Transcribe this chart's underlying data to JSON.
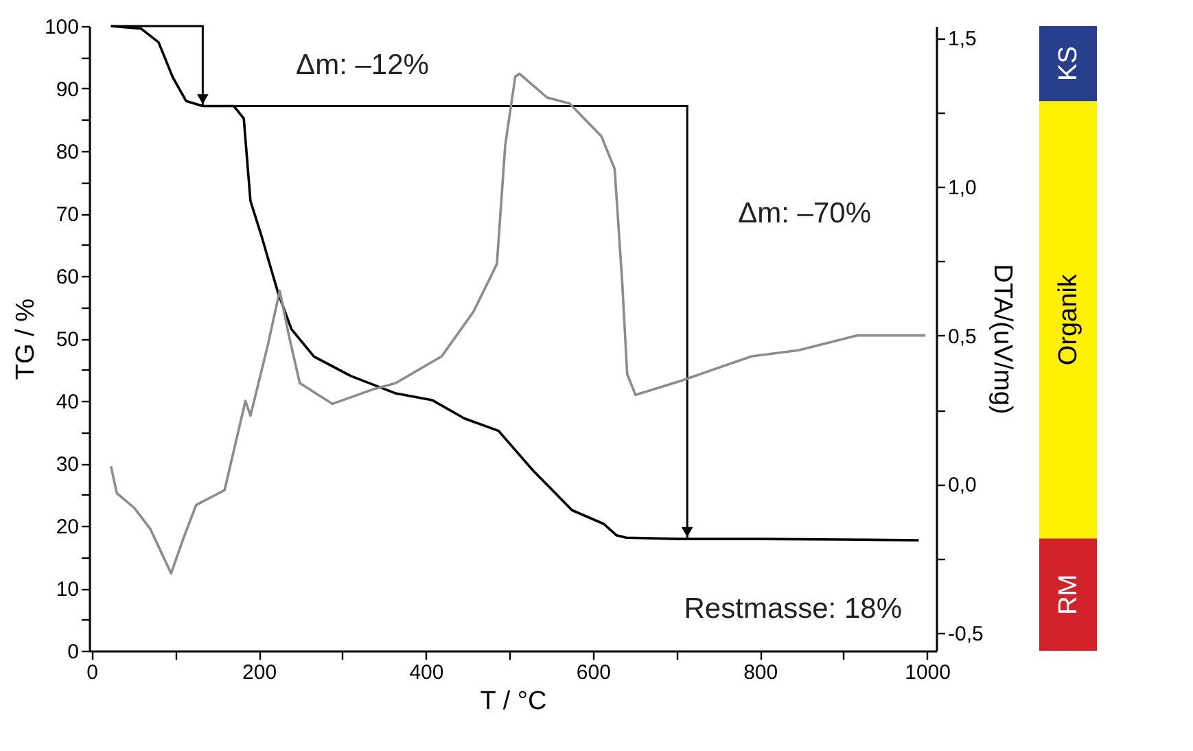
{
  "chart_data": [
    {
      "type": "line",
      "xlabel": "T / °C",
      "ylabel": "TG / %",
      "y2label": "DTA/(uV/mg)",
      "xlim": [
        -3,
        1011
      ],
      "ylim": [
        0,
        100
      ],
      "y2lim": [
        -0.56,
        1.54
      ],
      "xticks": [
        0,
        {
          "value": 100,
          "label": null
        },
        200,
        {
          "value": 300,
          "label": null
        },
        400,
        {
          "value": 500,
          "label": null
        },
        600,
        {
          "value": 700,
          "label": null
        },
        800,
        {
          "value": 900,
          "label": null
        },
        1000
      ],
      "yticks": [
        0,
        {
          "value": 5,
          "label": null
        },
        10,
        {
          "value": 15,
          "label": null
        },
        20,
        {
          "value": 25,
          "label": null
        },
        30,
        {
          "value": 35,
          "label": null
        },
        40,
        {
          "value": 45,
          "label": null
        },
        50,
        {
          "value": 55,
          "label": null
        },
        60,
        {
          "value": 65,
          "label": null
        },
        70,
        {
          "value": 75,
          "label": null
        },
        80,
        {
          "value": 85,
          "label": null
        },
        90,
        {
          "value": 95,
          "label": null
        },
        100
      ],
      "y2ticks": [
        {
          "value": -0.5,
          "label": "-0,5"
        },
        {
          "value": -0.25,
          "label": null
        },
        {
          "value": 0.0,
          "label": "0,0"
        },
        {
          "value": 0.25,
          "label": null
        },
        {
          "value": 0.5,
          "label": "0,5"
        },
        {
          "value": 0.75,
          "label": null
        },
        {
          "value": 1.0,
          "label": "1,0"
        },
        {
          "value": 1.25,
          "label": null
        },
        {
          "value": 1.5,
          "label": "1,5"
        }
      ],
      "series": [
        {
          "color": "#000000",
          "x": [
            23,
            59,
            80,
            97,
            113,
            133,
            170,
            182,
            190,
            203,
            215,
            223,
            239,
            266,
            310,
            364,
            408,
            446,
            487,
            528,
            575,
            613,
            628,
            640,
            703,
            800,
            900,
            990
          ],
          "values": [
            100,
            99.6,
            97.4,
            91.8,
            88,
            87.2,
            87.2,
            85.2,
            72,
            66.5,
            61,
            57.3,
            51.5,
            47.1,
            44,
            41.2,
            40.1,
            37.2,
            35.2,
            28.9,
            22.5,
            20.3,
            18.5,
            18.1,
            17.9,
            17.9,
            17.8,
            17.7
          ]
        },
        {
          "axis": "y2",
          "color": "#8c8c8c",
          "x": [
            23,
            30,
            51,
            70,
            95,
            110,
            125,
            159,
            184,
            190,
            211,
            225,
            236,
            249,
            288,
            338,
            364,
            419,
            457,
            485,
            495,
            507,
            512,
            545,
            572,
            610,
            626,
            635,
            641,
            651,
            708,
            790,
            846,
            916,
            998
          ],
          "values": [
            0.06,
            -0.03,
            -0.08,
            -0.15,
            -0.3,
            -0.18,
            -0.07,
            -0.02,
            0.28,
            0.23,
            0.47,
            0.65,
            0.5,
            0.34,
            0.27,
            0.32,
            0.34,
            0.43,
            0.58,
            0.74,
            1.14,
            1.37,
            1.38,
            1.3,
            1.28,
            1.17,
            1.06,
            0.68,
            0.37,
            0.3,
            0.35,
            0.43,
            0.45,
            0.5,
            0.5
          ]
        }
      ],
      "annotations": [
        "Δm: –12%",
        "Δm: –70%",
        "Restmasse: 18%"
      ]
    },
    {
      "type": "bar",
      "stacked": true,
      "categories": [
        null
      ],
      "ylim": [
        0,
        100
      ],
      "tick_labels": false,
      "series": [
        {
          "name": "RM",
          "color": "#d2232a",
          "values": [
            18
          ]
        },
        {
          "name": "Organik",
          "color": "#fff200",
          "values": [
            70
          ]
        },
        {
          "name": "KS",
          "color": "#283f8e",
          "values": [
            12
          ]
        }
      ]
    }
  ]
}
